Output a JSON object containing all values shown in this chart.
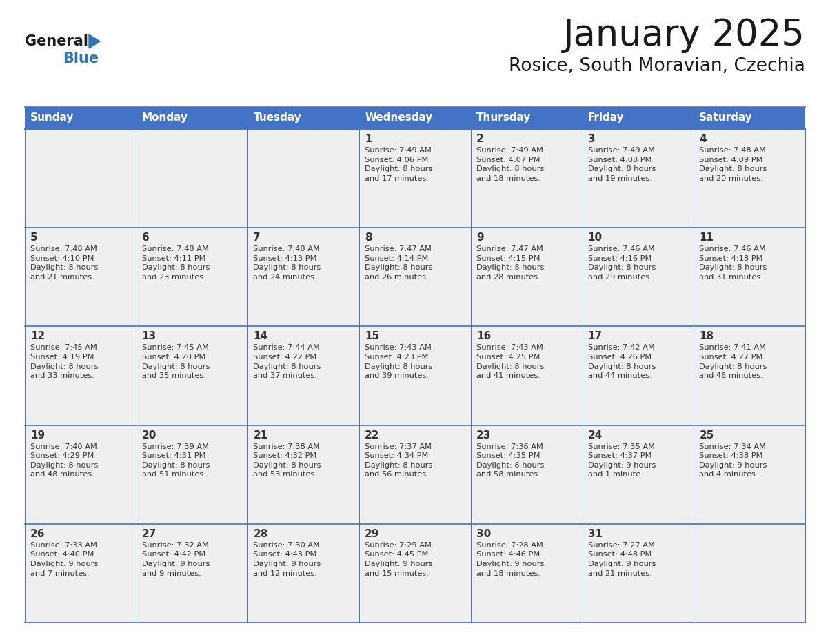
{
  "title": "January 2025",
  "subtitle": "Rosice, South Moravian, Czechia",
  "header_bg": "#4472C4",
  "header_text_color": "#FFFFFF",
  "cell_bg_light": "#EFEFEF",
  "border_color": "#4472C4",
  "text_color": "#333333",
  "days_of_week": [
    "Sunday",
    "Monday",
    "Tuesday",
    "Wednesday",
    "Thursday",
    "Friday",
    "Saturday"
  ],
  "calendar_data": [
    [
      {
        "day": "",
        "info": ""
      },
      {
        "day": "",
        "info": ""
      },
      {
        "day": "",
        "info": ""
      },
      {
        "day": "1",
        "info": "Sunrise: 7:49 AM\nSunset: 4:06 PM\nDaylight: 8 hours\nand 17 minutes."
      },
      {
        "day": "2",
        "info": "Sunrise: 7:49 AM\nSunset: 4:07 PM\nDaylight: 8 hours\nand 18 minutes."
      },
      {
        "day": "3",
        "info": "Sunrise: 7:49 AM\nSunset: 4:08 PM\nDaylight: 8 hours\nand 19 minutes."
      },
      {
        "day": "4",
        "info": "Sunrise: 7:48 AM\nSunset: 4:09 PM\nDaylight: 8 hours\nand 20 minutes."
      }
    ],
    [
      {
        "day": "5",
        "info": "Sunrise: 7:48 AM\nSunset: 4:10 PM\nDaylight: 8 hours\nand 21 minutes."
      },
      {
        "day": "6",
        "info": "Sunrise: 7:48 AM\nSunset: 4:11 PM\nDaylight: 8 hours\nand 23 minutes."
      },
      {
        "day": "7",
        "info": "Sunrise: 7:48 AM\nSunset: 4:13 PM\nDaylight: 8 hours\nand 24 minutes."
      },
      {
        "day": "8",
        "info": "Sunrise: 7:47 AM\nSunset: 4:14 PM\nDaylight: 8 hours\nand 26 minutes."
      },
      {
        "day": "9",
        "info": "Sunrise: 7:47 AM\nSunset: 4:15 PM\nDaylight: 8 hours\nand 28 minutes."
      },
      {
        "day": "10",
        "info": "Sunrise: 7:46 AM\nSunset: 4:16 PM\nDaylight: 8 hours\nand 29 minutes."
      },
      {
        "day": "11",
        "info": "Sunrise: 7:46 AM\nSunset: 4:18 PM\nDaylight: 8 hours\nand 31 minutes."
      }
    ],
    [
      {
        "day": "12",
        "info": "Sunrise: 7:45 AM\nSunset: 4:19 PM\nDaylight: 8 hours\nand 33 minutes."
      },
      {
        "day": "13",
        "info": "Sunrise: 7:45 AM\nSunset: 4:20 PM\nDaylight: 8 hours\nand 35 minutes."
      },
      {
        "day": "14",
        "info": "Sunrise: 7:44 AM\nSunset: 4:22 PM\nDaylight: 8 hours\nand 37 minutes."
      },
      {
        "day": "15",
        "info": "Sunrise: 7:43 AM\nSunset: 4:23 PM\nDaylight: 8 hours\nand 39 minutes."
      },
      {
        "day": "16",
        "info": "Sunrise: 7:43 AM\nSunset: 4:25 PM\nDaylight: 8 hours\nand 41 minutes."
      },
      {
        "day": "17",
        "info": "Sunrise: 7:42 AM\nSunset: 4:26 PM\nDaylight: 8 hours\nand 44 minutes."
      },
      {
        "day": "18",
        "info": "Sunrise: 7:41 AM\nSunset: 4:27 PM\nDaylight: 8 hours\nand 46 minutes."
      }
    ],
    [
      {
        "day": "19",
        "info": "Sunrise: 7:40 AM\nSunset: 4:29 PM\nDaylight: 8 hours\nand 48 minutes."
      },
      {
        "day": "20",
        "info": "Sunrise: 7:39 AM\nSunset: 4:31 PM\nDaylight: 8 hours\nand 51 minutes."
      },
      {
        "day": "21",
        "info": "Sunrise: 7:38 AM\nSunset: 4:32 PM\nDaylight: 8 hours\nand 53 minutes."
      },
      {
        "day": "22",
        "info": "Sunrise: 7:37 AM\nSunset: 4:34 PM\nDaylight: 8 hours\nand 56 minutes."
      },
      {
        "day": "23",
        "info": "Sunrise: 7:36 AM\nSunset: 4:35 PM\nDaylight: 8 hours\nand 58 minutes."
      },
      {
        "day": "24",
        "info": "Sunrise: 7:35 AM\nSunset: 4:37 PM\nDaylight: 9 hours\nand 1 minute."
      },
      {
        "day": "25",
        "info": "Sunrise: 7:34 AM\nSunset: 4:38 PM\nDaylight: 9 hours\nand 4 minutes."
      }
    ],
    [
      {
        "day": "26",
        "info": "Sunrise: 7:33 AM\nSunset: 4:40 PM\nDaylight: 9 hours\nand 7 minutes."
      },
      {
        "day": "27",
        "info": "Sunrise: 7:32 AM\nSunset: 4:42 PM\nDaylight: 9 hours\nand 9 minutes."
      },
      {
        "day": "28",
        "info": "Sunrise: 7:30 AM\nSunset: 4:43 PM\nDaylight: 9 hours\nand 12 minutes."
      },
      {
        "day": "29",
        "info": "Sunrise: 7:29 AM\nSunset: 4:45 PM\nDaylight: 9 hours\nand 15 minutes."
      },
      {
        "day": "30",
        "info": "Sunrise: 7:28 AM\nSunset: 4:46 PM\nDaylight: 9 hours\nand 18 minutes."
      },
      {
        "day": "31",
        "info": "Sunrise: 7:27 AM\nSunset: 4:48 PM\nDaylight: 9 hours\nand 21 minutes."
      },
      {
        "day": "",
        "info": ""
      }
    ]
  ],
  "logo_text_general": "General",
  "logo_text_blue": "Blue",
  "logo_color_general": "#1a1a1a",
  "logo_color_blue": "#2E75B6",
  "logo_triangle_color": "#2E75B6",
  "fig_width": 11.88,
  "fig_height": 9.18,
  "dpi": 100
}
